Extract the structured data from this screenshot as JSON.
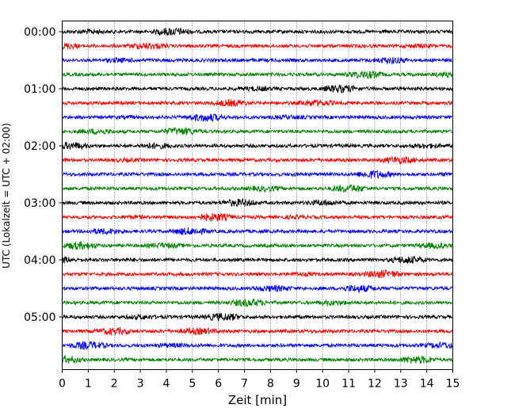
{
  "chart_data": {
    "type": "line",
    "title": "",
    "xlabel": "Zeit  [min]",
    "ylabel": "UTC (Lokalzeit = UTC + 02:00)",
    "xlim": [
      0,
      15
    ],
    "x_ticks": [
      "0",
      "1",
      "2",
      "3",
      "4",
      "5",
      "6",
      "7",
      "8",
      "9",
      "10",
      "11",
      "12",
      "13",
      "14",
      "15"
    ],
    "y_ticks": [
      "00:00",
      "01:00",
      "02:00",
      "03:00",
      "04:00",
      "05:00"
    ],
    "grid": "vertical dotted lines at each minute",
    "trace_interval_minutes": 15,
    "trace_count": 24,
    "trace_start_times": [
      "00:00",
      "00:15",
      "00:30",
      "00:45",
      "01:00",
      "01:15",
      "01:30",
      "01:45",
      "02:00",
      "02:15",
      "02:30",
      "02:45",
      "03:00",
      "03:15",
      "03:30",
      "03:45",
      "04:00",
      "04:15",
      "04:30",
      "04:45",
      "05:00",
      "05:15",
      "05:30",
      "05:45"
    ],
    "colors": [
      "#000000",
      "#ff0000",
      "#0000ff",
      "#008000"
    ]
  }
}
